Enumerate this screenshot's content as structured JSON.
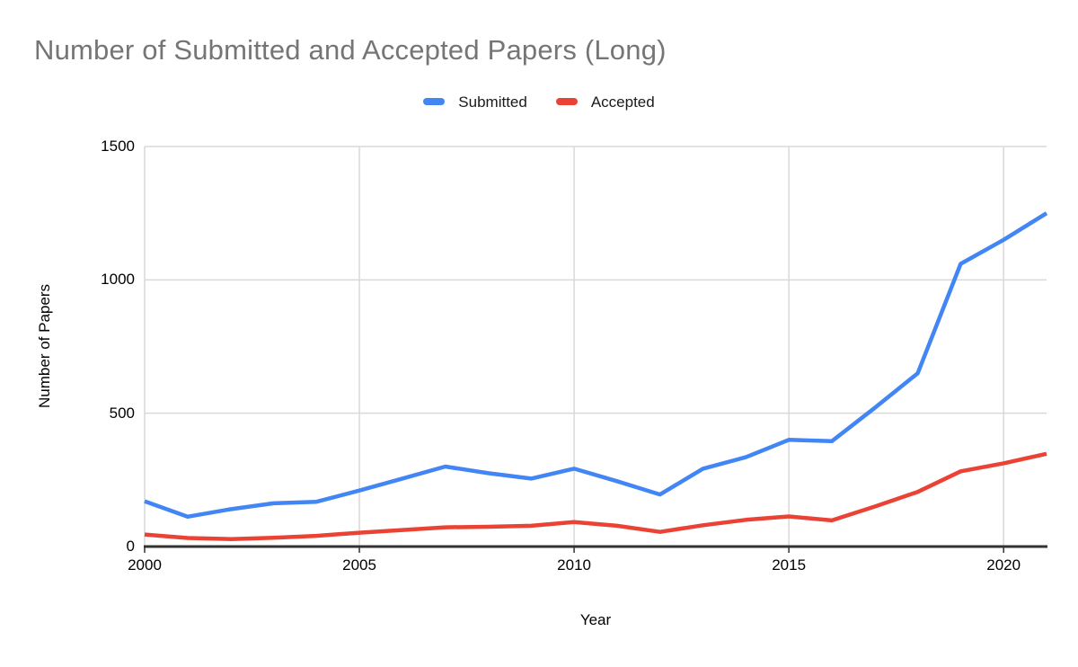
{
  "chart_data": {
    "type": "line",
    "title": "Number of Submitted and Accepted Papers (Long)",
    "xlabel": "Year",
    "ylabel": "Number of Papers",
    "x": [
      2000,
      2001,
      2002,
      2003,
      2004,
      2005,
      2006,
      2007,
      2008,
      2009,
      2010,
      2011,
      2012,
      2013,
      2014,
      2015,
      2016,
      2017,
      2018,
      2019,
      2020,
      2021
    ],
    "series": [
      {
        "name": "Submitted",
        "color": "#4285F4",
        "values": [
          170,
          112,
          140,
          162,
          168,
          210,
          255,
          300,
          275,
          255,
          292,
          245,
          195,
          292,
          335,
          400,
          395,
          520,
          650,
          1060,
          1150,
          1250
        ]
      },
      {
        "name": "Accepted",
        "color": "#EA4335",
        "values": [
          45,
          32,
          28,
          33,
          40,
          52,
          62,
          72,
          74,
          78,
          92,
          78,
          55,
          80,
          100,
          113,
          98,
          150,
          205,
          282,
          312,
          348
        ]
      }
    ],
    "xlim": [
      2000,
      2021
    ],
    "ylim": [
      0,
      1500
    ],
    "x_ticks": [
      2000,
      2005,
      2010,
      2015,
      2020
    ],
    "y_ticks": [
      0,
      500,
      1000,
      1500
    ],
    "grid": true,
    "legend_position": "top-center",
    "colors": {
      "title_text": "#757575",
      "axis_text": "#000000",
      "legend_text": "#1a1a1a",
      "gridline": "#d9d9d9",
      "axis_line": "#333333",
      "background": "#ffffff"
    }
  }
}
